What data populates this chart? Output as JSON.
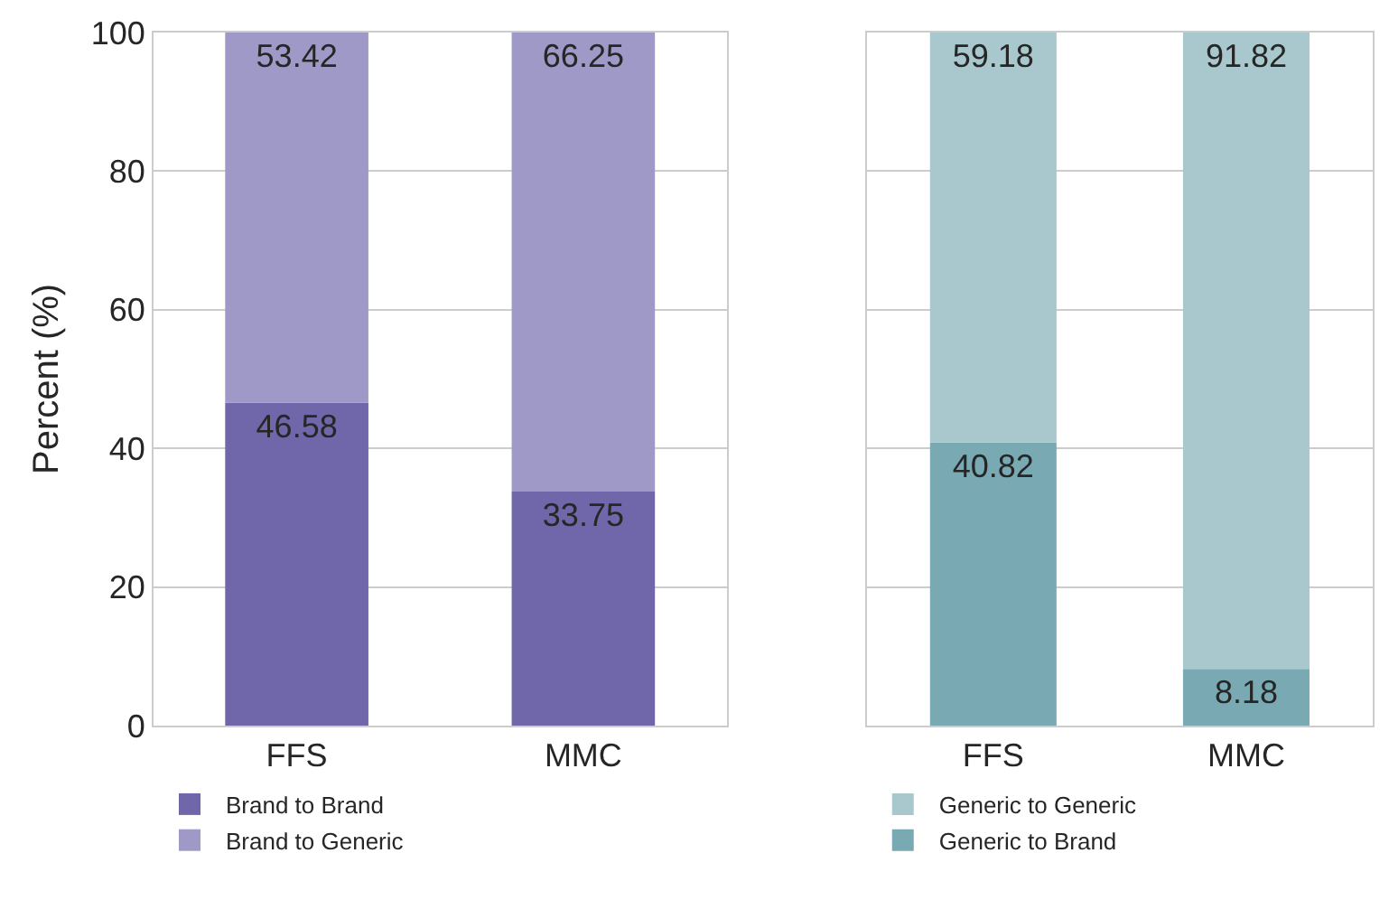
{
  "chart_data": [
    {
      "type": "bar",
      "stacked": true,
      "ylabel": "Percent (%)",
      "categories": [
        "FFS",
        "MMC"
      ],
      "ylim": [
        0,
        100
      ],
      "yticks": [
        0,
        20,
        40,
        60,
        80,
        100
      ],
      "grid": "y",
      "legend": "bottom",
      "data_labels": true,
      "series": [
        {
          "name": "Brand to Brand",
          "color": "#7066aa",
          "values": [
            46.58,
            33.75
          ]
        },
        {
          "name": "Brand to Generic",
          "color": "#9f99c7",
          "values": [
            53.42,
            66.25
          ]
        }
      ]
    },
    {
      "type": "bar",
      "stacked": true,
      "categories": [
        "FFS",
        "MMC"
      ],
      "ylim": [
        0,
        100
      ],
      "yticks": [
        0,
        20,
        40,
        60,
        80,
        100
      ],
      "grid": "y",
      "legend": "bottom",
      "data_labels": true,
      "tick_labels": "x",
      "series": [
        {
          "name": "Generic to Brand",
          "color": "#79aab3",
          "values": [
            40.82,
            8.18
          ]
        },
        {
          "name": "Generic to Generic",
          "color": "#a8c8cd",
          "values": [
            59.18,
            91.82
          ]
        }
      ]
    }
  ]
}
